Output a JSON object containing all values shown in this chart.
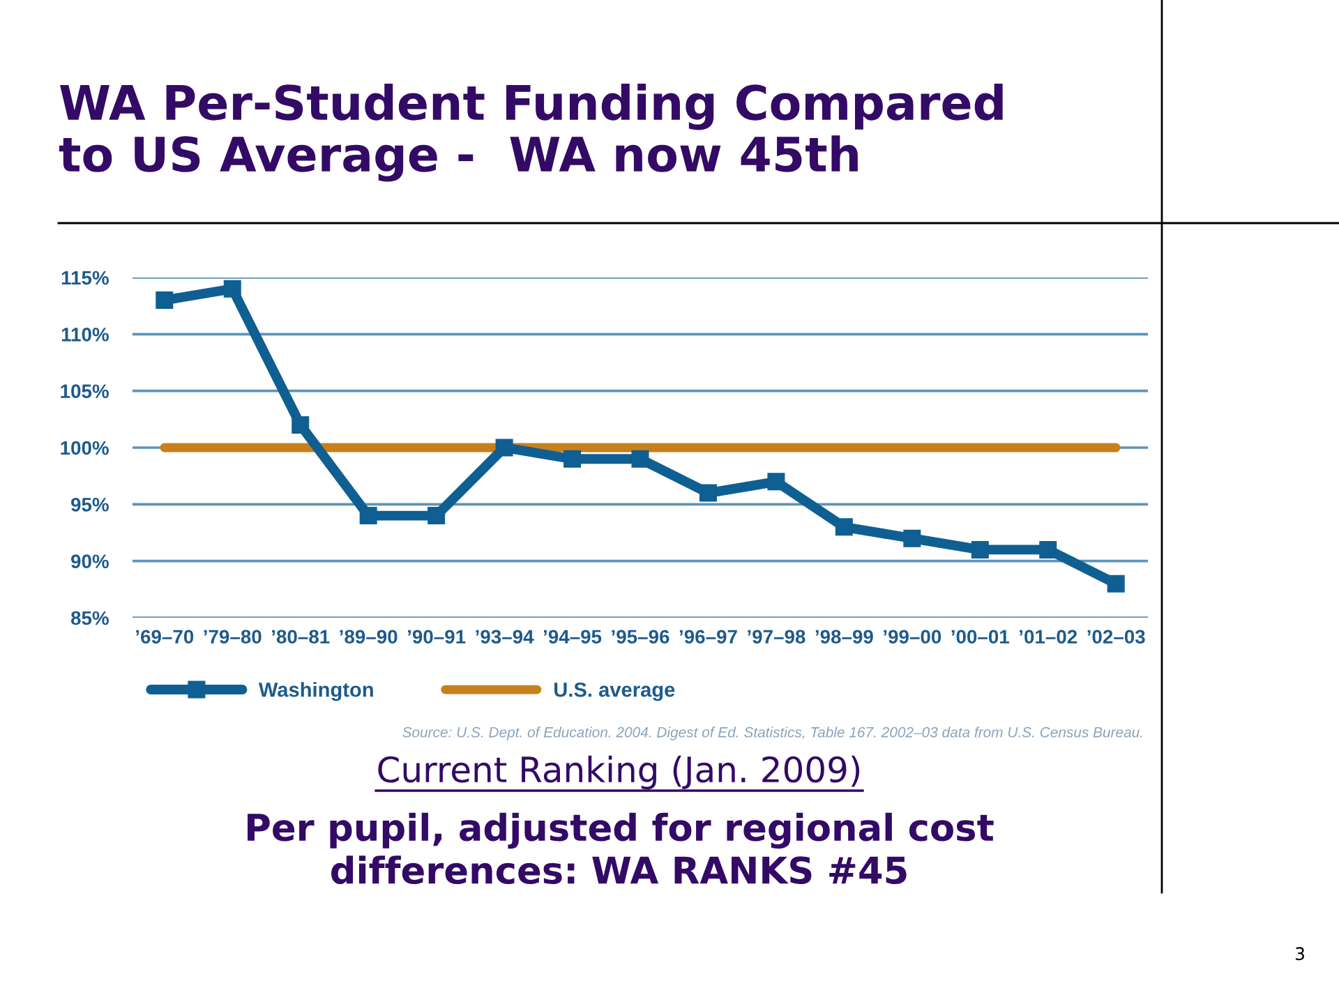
{
  "chart_data": {
    "type": "line",
    "title": "WA Per-Student Funding Compared\nto US Average -  WA now 45th",
    "categories": [
      "’69–70",
      "’79–80",
      "’80–81",
      "’89–90",
      "’90–91",
      "’93–94",
      "’94–95",
      "’95–96",
      "’96–97",
      "’97–98",
      "’98–99",
      "’99–00",
      "’00–01",
      "’01–02",
      "’02–03"
    ],
    "series": [
      {
        "name": "Washington",
        "color": "#0f5f92",
        "marker": "square",
        "values": [
          113,
          114,
          102,
          94,
          94,
          100,
          99,
          99,
          96,
          97,
          93,
          92,
          91,
          91,
          88
        ]
      },
      {
        "name": "U.S. average",
        "color": "#c8801c",
        "marker": "none",
        "values": [
          100,
          100,
          100,
          100,
          100,
          100,
          100,
          100,
          100,
          100,
          100,
          100,
          100,
          100,
          100
        ]
      }
    ],
    "ylim": [
      85,
      115
    ],
    "yticks": [
      {
        "value": 85,
        "label": "85%"
      },
      {
        "value": 90,
        "label": "90%"
      },
      {
        "value": 95,
        "label": "95%"
      },
      {
        "value": 100,
        "label": "100%"
      },
      {
        "value": 105,
        "label": "105%"
      },
      {
        "value": 110,
        "label": "110%"
      },
      {
        "value": 115,
        "label": "115%"
      }
    ],
    "grid": "y",
    "legend": "bottom left",
    "annotations": [
      "Source: U.S. Dept. of Education. 2004. Digest of Ed. Statistics, Table 167. 2002–03 data from U.S. Census Bureau.",
      "Current Ranking (Jan. 2009)",
      "Per pupil, adjusted for regional cost\ndifferences: WA RANKS #45",
      "3"
    ]
  }
}
